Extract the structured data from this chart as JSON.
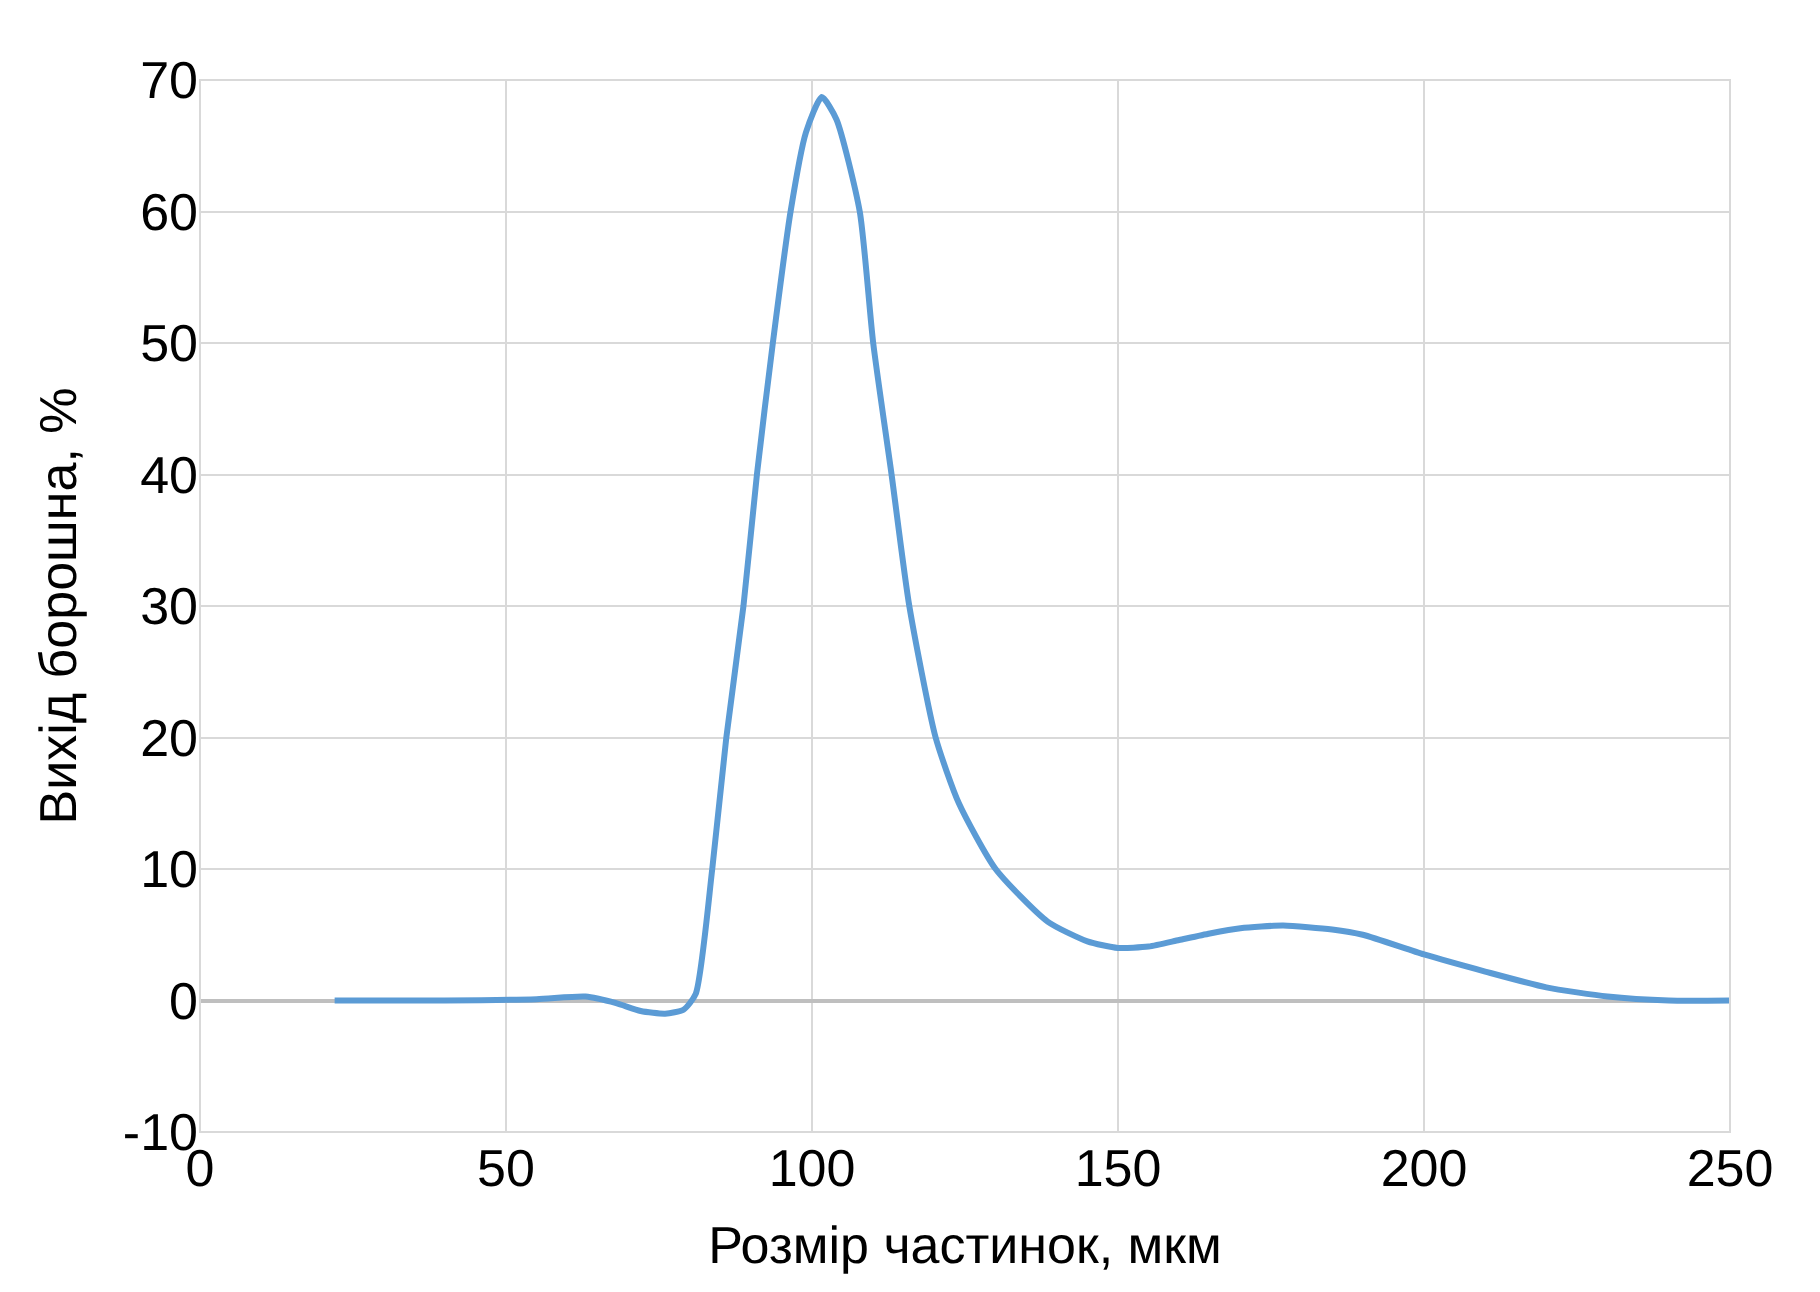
{
  "chart_data": {
    "type": "line",
    "xlabel": "Розмір частинок, мкм",
    "ylabel": "Вихід борошна, %",
    "series": [
      {
        "color": "#5b9bd5",
        "x": [
          22,
          40,
          55,
          63,
          68,
          72,
          76,
          79,
          81,
          83.7,
          86,
          88.8,
          91,
          93.6,
          96.5,
          99,
          101.6,
          104,
          107.8,
          110,
          113,
          115.9,
          120.2,
          124,
          130,
          138.5,
          145,
          150,
          155,
          160,
          165,
          170,
          177,
          185,
          190,
          200,
          210,
          220,
          230,
          240,
          250
        ],
        "values": [
          0,
          0,
          0.1,
          0.3,
          -0.2,
          -0.8,
          -1.0,
          -0.7,
          0.5,
          10,
          20,
          30,
          40,
          50,
          60,
          66,
          68.7,
          67,
          60,
          50,
          40,
          30,
          20,
          15,
          10,
          6,
          4.5,
          4,
          4.1,
          4.6,
          5.1,
          5.5,
          5.7,
          5.4,
          5,
          3.5,
          2.2,
          1,
          0.3,
          0,
          0
        ]
      }
    ],
    "xlim": [
      0,
      250
    ],
    "xticks": [
      0,
      50,
      100,
      150,
      200,
      250
    ],
    "ylim": [
      -10,
      70
    ],
    "yticks": [
      -10,
      0,
      10,
      20,
      30,
      40,
      50,
      60,
      70
    ],
    "grid": true,
    "legend": false,
    "marker": "none",
    "line_style": "solid"
  }
}
